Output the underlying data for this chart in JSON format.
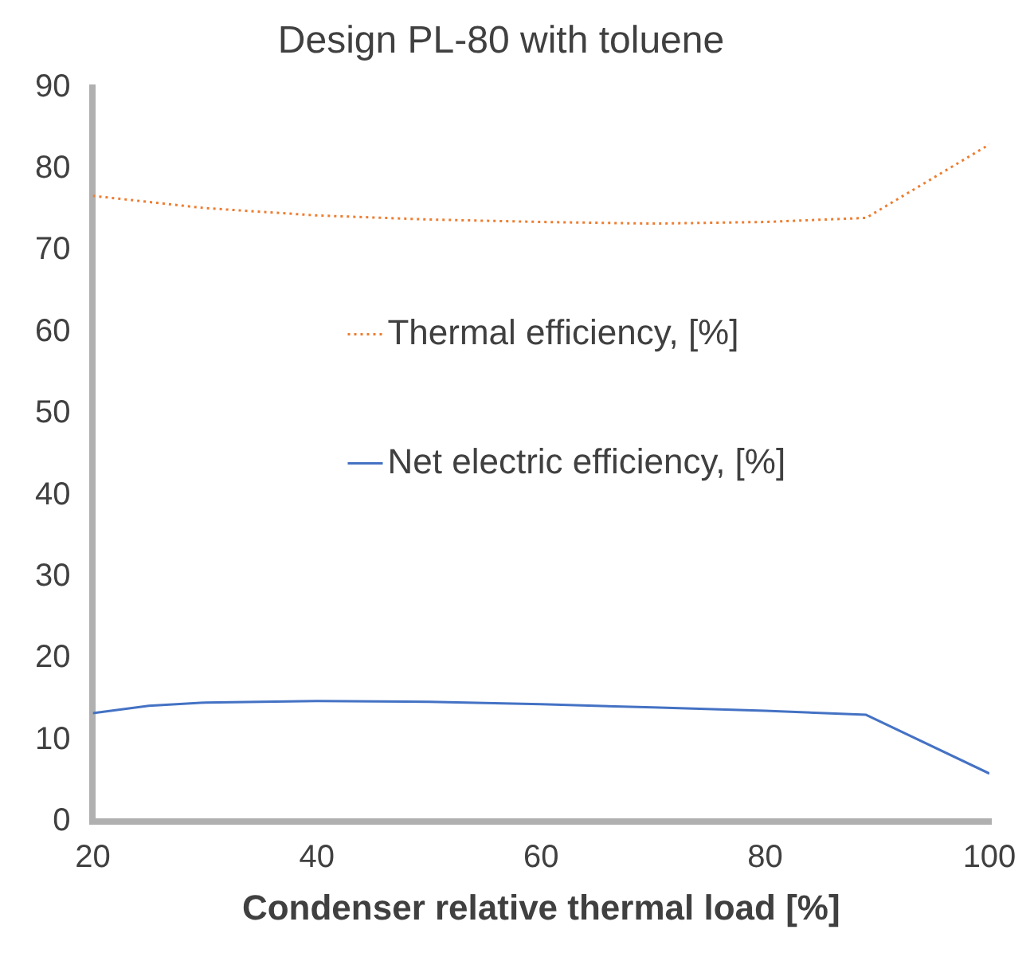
{
  "chart_data": {
    "type": "line",
    "title": "Design PL-80 with toluene",
    "xlabel": "Condenser relative thermal load [%]",
    "xlim": [
      20,
      100
    ],
    "xticks": [
      20,
      40,
      60,
      80,
      100
    ],
    "ylim": [
      0,
      90
    ],
    "yticks": [
      0,
      10,
      20,
      30,
      40,
      50,
      60,
      70,
      80,
      90
    ],
    "grid": false,
    "legend": "center",
    "series": [
      {
        "name": "Thermal efficiency, [%]",
        "color": "#ed7d31",
        "line_style": "dotted",
        "x": [
          20,
          30,
          40,
          50,
          60,
          70,
          80,
          89,
          100
        ],
        "values": [
          76.7,
          75.2,
          74.3,
          73.8,
          73.5,
          73.3,
          73.5,
          74,
          83
        ]
      },
      {
        "name": "Net electric efficiency, [%]",
        "color": "#4472c4",
        "line_style": "solid",
        "x": [
          20,
          25,
          30,
          40,
          50,
          60,
          70,
          80,
          89,
          100
        ],
        "values": [
          13.3,
          14.2,
          14.6,
          14.8,
          14.7,
          14.4,
          14.0,
          13.6,
          13.1,
          5.9
        ]
      }
    ]
  }
}
